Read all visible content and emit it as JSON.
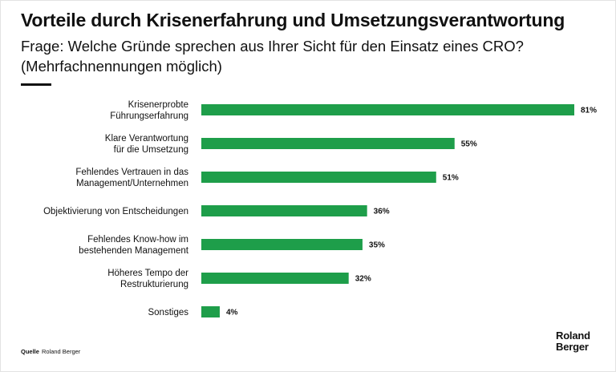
{
  "title": "Vorteile durch Krisenerfahrung und Umsetzungsverantwortung",
  "subtitle": "Frage: Welche Gründe sprechen aus Ihrer Sicht für den Einsatz eines CRO? (Mehrfachnennungen möglich)",
  "source": {
    "label": "Quelle",
    "text": "Roland Berger"
  },
  "logo": {
    "line1": "Roland",
    "line2": "Berger"
  },
  "colors": {
    "bar": "#1e9e4a",
    "text": "#111111"
  },
  "chart_data": {
    "type": "bar",
    "orientation": "horizontal",
    "categories": [
      [
        "Krisenerprobte",
        "Führungserfahrung"
      ],
      [
        "Klare Verantwortung",
        "für die Umsetzung"
      ],
      [
        "Fehlendes Vertrauen in das",
        "Management/Unternehmen"
      ],
      [
        "Objektivierung von Entscheidungen"
      ],
      [
        "Fehlendes Know-how im",
        "bestehenden Management"
      ],
      [
        "Höheres Tempo der",
        "Restrukturierung"
      ],
      [
        "Sonstiges"
      ]
    ],
    "values": [
      81,
      55,
      51,
      36,
      35,
      32,
      4
    ],
    "value_labels": [
      "81%",
      "55%",
      "51%",
      "36%",
      "35%",
      "32%",
      "4%"
    ],
    "unit": "%",
    "xlim": [
      0,
      81
    ],
    "grid": false,
    "legend": false
  }
}
